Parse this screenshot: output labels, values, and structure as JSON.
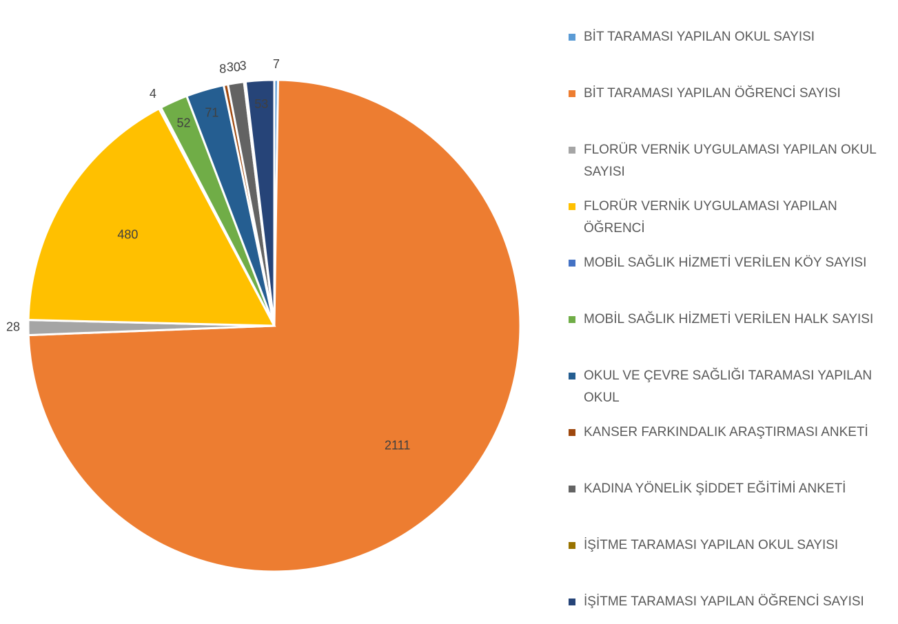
{
  "chart_data": {
    "type": "pie",
    "categories": [
      "BİT TARAMASI YAPILAN OKUL SAYISI",
      "BİT TARAMASI YAPILAN ÖĞRENCİ SAYISI",
      "FLORÜR VERNİK UYGULAMASI YAPILAN OKUL SAYISI",
      "FLORÜR VERNİK UYGULAMASI YAPILAN ÖĞRENCİ",
      "MOBİL SAĞLIK HİZMETİ VERİLEN KÖY SAYISI",
      "MOBİL SAĞLIK HİZMETİ VERİLEN HALK SAYISI",
      "OKUL VE ÇEVRE SAĞLIĞI TARAMASI YAPILAN OKUL",
      "KANSER FARKINDALIK ARAŞTIRMASI ANKETİ",
      "KADINA YÖNELİK ŞİDDET EĞİTİMİ ANKETİ",
      "İŞİTME TARAMASI YAPILAN OKUL SAYISI",
      "İŞİTME TARAMASI YAPILAN ÖĞRENCİ SAYISI"
    ],
    "values": [
      7,
      2111,
      28,
      480,
      4,
      52,
      71,
      8,
      30,
      3,
      53
    ],
    "colors": [
      "#5B9BD5",
      "#ED7D31",
      "#A5A5A5",
      "#FFC000",
      "#4472C4",
      "#70AD47",
      "#255E91",
      "#9E480E",
      "#636363",
      "#997300",
      "#264478"
    ],
    "legend": "right"
  }
}
